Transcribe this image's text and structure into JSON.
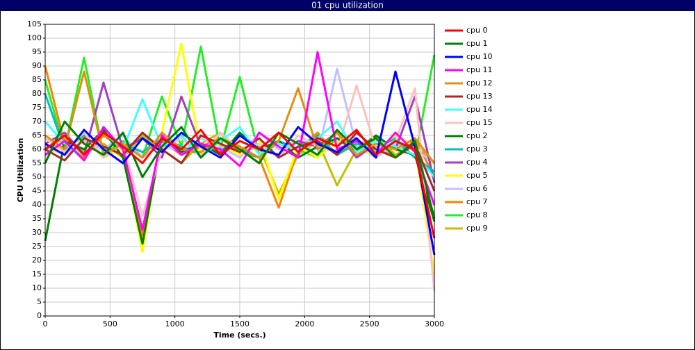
{
  "chart_data": {
    "type": "line",
    "title": "01 cpu utilization",
    "x_label": "Time (secs.)",
    "y_label": "CPU Utilization",
    "xlim": [
      0,
      3000
    ],
    "xticks": [
      0,
      500,
      1000,
      1500,
      2000,
      2500,
      3000
    ],
    "ylim": [
      0,
      105
    ],
    "yticks": [
      0,
      5,
      10,
      15,
      20,
      25,
      30,
      35,
      40,
      45,
      50,
      55,
      60,
      65,
      70,
      75,
      80,
      85,
      90,
      95,
      100,
      105
    ],
    "grid": true,
    "legend": "right",
    "x": [
      0,
      150,
      300,
      450,
      600,
      750,
      900,
      1050,
      1200,
      1350,
      1500,
      1650,
      1800,
      1950,
      2100,
      2250,
      2400,
      2550,
      2700,
      2850,
      3000
    ],
    "series": [
      {
        "name": "cpu 0",
        "color": "#ff0000",
        "values": [
          60,
          65,
          58,
          66,
          61,
          55,
          64,
          60,
          67,
          58,
          63,
          60,
          66,
          59,
          64,
          61,
          67,
          58,
          63,
          60,
          28
        ]
      },
      {
        "name": "cpu 1",
        "color": "#008000",
        "values": [
          55,
          70,
          62,
          58,
          66,
          50,
          61,
          68,
          57,
          64,
          60,
          55,
          66,
          62,
          58,
          67,
          60,
          64,
          57,
          63,
          35
        ]
      },
      {
        "name": "cpu 10",
        "color": "#0000ff",
        "values": [
          62,
          58,
          67,
          60,
          55,
          64,
          59,
          66,
          61,
          57,
          65,
          60,
          58,
          68,
          62,
          59,
          64,
          57,
          88,
          61,
          22
        ]
      },
      {
        "name": "cpu 11",
        "color": "#ff00ff",
        "values": [
          58,
          63,
          56,
          68,
          60,
          31,
          65,
          58,
          62,
          60,
          54,
          66,
          61,
          57,
          95,
          60,
          63,
          58,
          66,
          59,
          40
        ]
      },
      {
        "name": "cpu 12",
        "color": "#e09010",
        "values": [
          65,
          60,
          88,
          58,
          62,
          57,
          66,
          60,
          59,
          64,
          61,
          57,
          63,
          82,
          60,
          66,
          58,
          62,
          60,
          64,
          55
        ]
      },
      {
        "name": "cpu 13",
        "color": "#a52a2a",
        "values": [
          60,
          56,
          64,
          61,
          58,
          66,
          60,
          55,
          65,
          62,
          59,
          64,
          57,
          61,
          63,
          58,
          66,
          60,
          57,
          62,
          45
        ]
      },
      {
        "name": "cpu 14",
        "color": "#40ffff",
        "values": [
          70,
          62,
          58,
          66,
          60,
          78,
          61,
          65,
          57,
          63,
          68,
          58,
          62,
          60,
          64,
          70,
          59,
          63,
          61,
          58,
          50
        ]
      },
      {
        "name": "cpu 15",
        "color": "#ffc0c0",
        "values": [
          64,
          59,
          66,
          57,
          62,
          36,
          60,
          64,
          58,
          66,
          60,
          62,
          57,
          65,
          61,
          59,
          83,
          60,
          63,
          82,
          9
        ]
      },
      {
        "name": "cpu 2",
        "color": "#008000",
        "values": [
          27,
          63,
          60,
          67,
          57,
          26,
          64,
          59,
          62,
          58,
          66,
          60,
          63,
          57,
          61,
          64,
          59,
          65,
          60,
          58,
          34
        ]
      },
      {
        "name": "cpu 3",
        "color": "#00c0c0",
        "values": [
          80,
          60,
          65,
          57,
          62,
          59,
          64,
          61,
          58,
          66,
          60,
          57,
          63,
          60,
          65,
          58,
          62,
          60,
          64,
          57,
          52
        ]
      },
      {
        "name": "cpu 4",
        "color": "#a040c0",
        "values": [
          62,
          66,
          58,
          84,
          60,
          64,
          57,
          79,
          61,
          59,
          65,
          60,
          58,
          63,
          61,
          66,
          57,
          62,
          60,
          79,
          48
        ]
      },
      {
        "name": "cpu 5",
        "color": "#ffff00",
        "values": [
          58,
          61,
          64,
          57,
          60,
          23,
          66,
          98,
          59,
          62,
          58,
          64,
          42,
          61,
          57,
          63,
          60,
          58,
          65,
          61,
          15
        ]
      },
      {
        "name": "cpu 6",
        "color": "#c0c0ff",
        "values": [
          61,
          58,
          63,
          60,
          65,
          57,
          62,
          59,
          64,
          61,
          57,
          66,
          60,
          63,
          58,
          89,
          61,
          57,
          62,
          60,
          55
        ]
      },
      {
        "name": "cpu 7",
        "color": "#ff8000",
        "values": [
          90,
          62,
          57,
          65,
          60,
          29,
          63,
          58,
          61,
          64,
          59,
          57,
          39,
          60,
          66,
          58,
          63,
          61,
          57,
          64,
          50
        ]
      },
      {
        "name": "cpu 8",
        "color": "#20f020",
        "values": [
          85,
          60,
          93,
          58,
          63,
          57,
          79,
          61,
          97,
          60,
          86,
          58,
          62,
          60,
          57,
          64,
          61,
          59,
          63,
          57,
          94
        ]
      },
      {
        "name": "cpu 9",
        "color": "#c0c000",
        "values": [
          60,
          64,
          59,
          62,
          57,
          65,
          60,
          55,
          62,
          66,
          59,
          61,
          44,
          58,
          63,
          47,
          60,
          65,
          58,
          62,
          55
        ]
      }
    ]
  }
}
